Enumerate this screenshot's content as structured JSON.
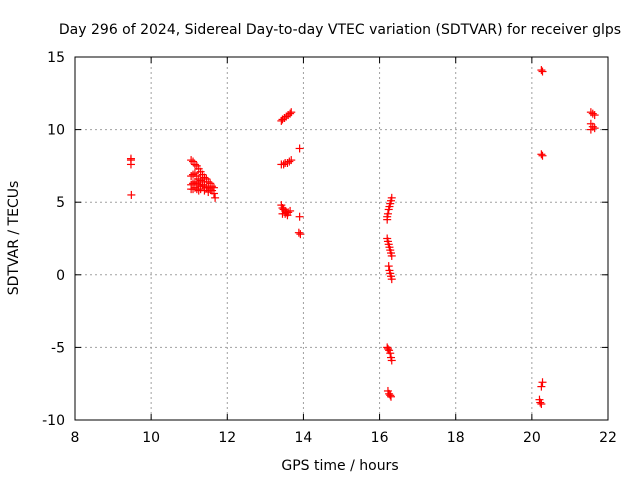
{
  "chart_data": {
    "type": "scatter",
    "title": "Day 296 of 2024, Sidereal Day-to-day VTEC variation (SDTVAR) for receiver glps",
    "xlabel": "GPS time / hours",
    "ylabel": "SDTVAR / TECUs",
    "xlim": [
      8,
      22
    ],
    "ylim": [
      -10,
      15
    ],
    "xticks": [
      8,
      10,
      12,
      14,
      16,
      18,
      20,
      22
    ],
    "yticks": [
      -10,
      -5,
      0,
      5,
      10,
      15
    ],
    "grid": true,
    "marker": "+",
    "color": "#ff0000",
    "series": [
      {
        "name": "glps",
        "points": [
          [
            9.47,
            8.0
          ],
          [
            9.47,
            7.6
          ],
          [
            9.47,
            7.9
          ],
          [
            9.48,
            5.5
          ],
          [
            11.05,
            7.9
          ],
          [
            11.1,
            7.8
          ],
          [
            11.15,
            7.6
          ],
          [
            11.2,
            7.5
          ],
          [
            11.25,
            7.3
          ],
          [
            11.3,
            7.1
          ],
          [
            11.35,
            6.9
          ],
          [
            11.4,
            6.7
          ],
          [
            11.45,
            6.6
          ],
          [
            11.5,
            6.4
          ],
          [
            11.55,
            6.3
          ],
          [
            11.6,
            6.1
          ],
          [
            11.65,
            6.0
          ],
          [
            11.05,
            6.8
          ],
          [
            11.1,
            6.9
          ],
          [
            11.15,
            7.0
          ],
          [
            11.2,
            6.8
          ],
          [
            11.25,
            6.6
          ],
          [
            11.3,
            6.5
          ],
          [
            11.35,
            6.4
          ],
          [
            11.05,
            6.2
          ],
          [
            11.1,
            6.3
          ],
          [
            11.15,
            6.4
          ],
          [
            11.2,
            6.3
          ],
          [
            11.25,
            6.2
          ],
          [
            11.3,
            6.1
          ],
          [
            11.35,
            6.2
          ],
          [
            11.4,
            6.1
          ],
          [
            11.45,
            6.0
          ],
          [
            11.5,
            6.0
          ],
          [
            11.55,
            5.9
          ],
          [
            11.6,
            5.8
          ],
          [
            11.65,
            5.6
          ],
          [
            11.68,
            5.3
          ],
          [
            11.05,
            5.9
          ],
          [
            11.1,
            5.9
          ],
          [
            11.15,
            6.0
          ],
          [
            11.2,
            5.9
          ],
          [
            11.25,
            5.8
          ],
          [
            11.3,
            5.9
          ],
          [
            11.4,
            5.8
          ],
          [
            11.5,
            5.7
          ],
          [
            13.42,
            10.6
          ],
          [
            13.45,
            10.7
          ],
          [
            13.5,
            10.8
          ],
          [
            13.55,
            10.9
          ],
          [
            13.6,
            11.0
          ],
          [
            13.65,
            11.1
          ],
          [
            13.68,
            11.2
          ],
          [
            13.42,
            7.6
          ],
          [
            13.48,
            7.6
          ],
          [
            13.52,
            7.7
          ],
          [
            13.58,
            7.7
          ],
          [
            13.63,
            7.8
          ],
          [
            13.68,
            7.9
          ],
          [
            13.42,
            4.8
          ],
          [
            13.45,
            4.6
          ],
          [
            13.48,
            4.5
          ],
          [
            13.52,
            4.4
          ],
          [
            13.55,
            4.3
          ],
          [
            13.6,
            4.3
          ],
          [
            13.65,
            4.4
          ],
          [
            13.45,
            4.2
          ],
          [
            13.52,
            4.2
          ],
          [
            13.58,
            4.1
          ],
          [
            13.9,
            8.7
          ],
          [
            13.9,
            4.0
          ],
          [
            13.88,
            2.9
          ],
          [
            13.92,
            2.8
          ],
          [
            16.2,
            4.0
          ],
          [
            16.22,
            4.2
          ],
          [
            16.24,
            4.5
          ],
          [
            16.26,
            4.7
          ],
          [
            16.28,
            4.9
          ],
          [
            16.3,
            5.1
          ],
          [
            16.32,
            5.3
          ],
          [
            16.2,
            3.8
          ],
          [
            16.2,
            2.5
          ],
          [
            16.22,
            2.3
          ],
          [
            16.24,
            2.1
          ],
          [
            16.26,
            1.9
          ],
          [
            16.28,
            1.7
          ],
          [
            16.3,
            1.5
          ],
          [
            16.32,
            1.3
          ],
          [
            16.24,
            0.6
          ],
          [
            16.26,
            0.3
          ],
          [
            16.28,
            0.1
          ],
          [
            16.3,
            -0.1
          ],
          [
            16.32,
            -0.3
          ],
          [
            16.2,
            -5.0
          ],
          [
            16.22,
            -5.1
          ],
          [
            16.25,
            -5.2
          ],
          [
            16.28,
            -5.4
          ],
          [
            16.3,
            -5.7
          ],
          [
            16.32,
            -5.9
          ],
          [
            16.22,
            -8.0
          ],
          [
            16.25,
            -8.2
          ],
          [
            16.28,
            -8.3
          ],
          [
            16.3,
            -8.4
          ],
          [
            20.25,
            14.1
          ],
          [
            20.28,
            14.0
          ],
          [
            20.25,
            8.3
          ],
          [
            20.28,
            8.2
          ],
          [
            20.28,
            -7.4
          ],
          [
            20.25,
            -7.7
          ],
          [
            20.2,
            -8.6
          ],
          [
            20.22,
            -8.8
          ],
          [
            20.25,
            -8.9
          ],
          [
            21.55,
            11.2
          ],
          [
            21.6,
            11.1
          ],
          [
            21.65,
            11.0
          ],
          [
            21.55,
            10.4
          ],
          [
            21.6,
            10.2
          ],
          [
            21.65,
            10.1
          ],
          [
            21.55,
            10.0
          ]
        ]
      }
    ]
  }
}
